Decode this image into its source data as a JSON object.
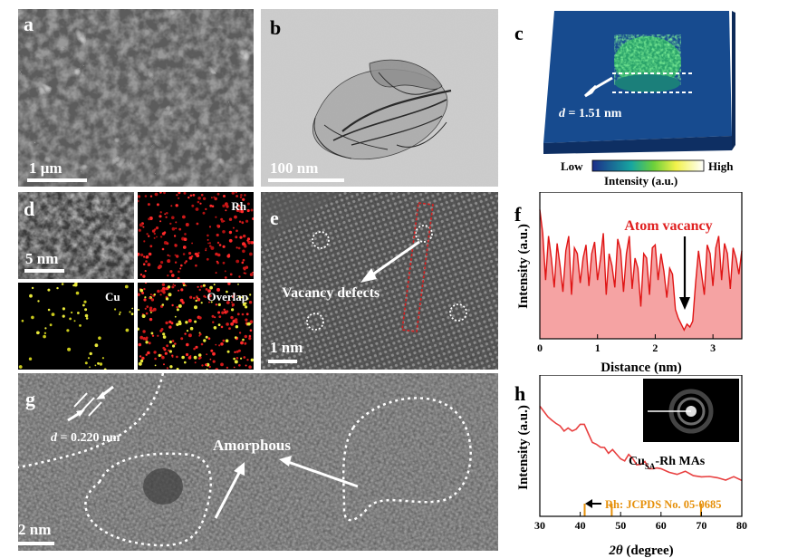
{
  "panels": {
    "a": {
      "label": "a",
      "scale": "1 μm"
    },
    "b": {
      "label": "b",
      "scale": "100 nm"
    },
    "c": {
      "label": "c",
      "d_prefix": "d",
      "d_value": " = 1.51 nm",
      "cb_low": "Low",
      "cb_high": "High",
      "cb_title": "Intensity (a.u.)"
    },
    "d": {
      "label": "d",
      "scale": "5 nm",
      "rh": "Rh",
      "cu": "Cu",
      "overlap": "Overlap"
    },
    "e": {
      "label": "e",
      "scale": "1 nm",
      "annotation": "Vacancy defects"
    },
    "f": {
      "label": "f",
      "annotation": "Atom vacancy",
      "ylabel": "Intensity (a.u.)",
      "xlabel": "Distance (nm)"
    },
    "g": {
      "label": "g",
      "scale": "2 nm",
      "d_prefix": "d",
      "d_value": " = 0.220 nm",
      "annotation": "Amorphous"
    },
    "h": {
      "label": "h",
      "ylabel": "Intensity (a.u.)",
      "series_main": "Cu",
      "series_sub": "SA",
      "series_rest": "-Rh MAs",
      "ref": "Rh: JCPDS No. 05-0685"
    }
  },
  "chart_data": [
    {
      "type": "line",
      "panel": "f",
      "xlabel": "Distance (nm)",
      "ylabel": "Intensity (a.u.)",
      "xlim": [
        0,
        3.5
      ],
      "xticks": [
        0,
        1,
        2,
        3
      ],
      "annotation": "Atom vacancy",
      "annotation_x": 2.55,
      "x": [
        0.0,
        0.05,
        0.1,
        0.15,
        0.2,
        0.25,
        0.3,
        0.35,
        0.4,
        0.45,
        0.5,
        0.55,
        0.6,
        0.65,
        0.7,
        0.75,
        0.8,
        0.85,
        0.9,
        0.95,
        1.0,
        1.05,
        1.1,
        1.15,
        1.2,
        1.25,
        1.3,
        1.35,
        1.4,
        1.45,
        1.5,
        1.55,
        1.6,
        1.65,
        1.7,
        1.75,
        1.8,
        1.85,
        1.9,
        1.95,
        2.0,
        2.05,
        2.1,
        2.15,
        2.2,
        2.25,
        2.3,
        2.35,
        2.4,
        2.45,
        2.5,
        2.55,
        2.6,
        2.65,
        2.7,
        2.75,
        2.8,
        2.85,
        2.9,
        2.95,
        3.0,
        3.05,
        3.1,
        3.15,
        3.2,
        3.25,
        3.3,
        3.35,
        3.4,
        3.45,
        3.5
      ],
      "y": [
        0.88,
        0.72,
        0.4,
        0.7,
        0.55,
        0.35,
        0.65,
        0.5,
        0.32,
        0.6,
        0.7,
        0.3,
        0.62,
        0.58,
        0.38,
        0.55,
        0.64,
        0.36,
        0.58,
        0.66,
        0.4,
        0.54,
        0.72,
        0.3,
        0.58,
        0.5,
        0.35,
        0.68,
        0.6,
        0.32,
        0.58,
        0.7,
        0.34,
        0.55,
        0.48,
        0.22,
        0.58,
        0.55,
        0.3,
        0.62,
        0.64,
        0.4,
        0.58,
        0.46,
        0.28,
        0.48,
        0.44,
        0.2,
        0.14,
        0.1,
        0.06,
        0.1,
        0.08,
        0.12,
        0.38,
        0.6,
        0.45,
        0.3,
        0.64,
        0.58,
        0.36,
        0.62,
        0.7,
        0.4,
        0.65,
        0.58,
        0.34,
        0.62,
        0.55,
        0.44,
        0.6
      ]
    },
    {
      "type": "line",
      "panel": "h",
      "xlabel": "2θ (degree)",
      "ylabel": "Intensity (a.u.)",
      "xlim": [
        30,
        80
      ],
      "xticks": [
        30,
        40,
        50,
        60,
        70,
        80
      ],
      "series": [
        {
          "name": "CuSA-Rh MAs",
          "x": [
            30,
            31,
            32,
            33,
            34,
            35,
            36,
            37,
            38,
            39,
            40,
            41,
            42,
            43,
            44,
            45,
            46,
            47,
            48,
            49,
            50,
            51,
            52,
            53,
            54,
            55,
            56,
            57,
            58,
            59,
            60,
            62,
            64,
            66,
            68,
            70,
            72,
            74,
            76,
            78,
            80
          ],
          "y": [
            0.78,
            0.74,
            0.72,
            0.69,
            0.66,
            0.64,
            0.62,
            0.61,
            0.6,
            0.62,
            0.66,
            0.64,
            0.58,
            0.54,
            0.51,
            0.5,
            0.48,
            0.46,
            0.47,
            0.44,
            0.42,
            0.41,
            0.42,
            0.39,
            0.38,
            0.37,
            0.37,
            0.35,
            0.34,
            0.34,
            0.33,
            0.32,
            0.31,
            0.3,
            0.29,
            0.29,
            0.28,
            0.28,
            0.27,
            0.27,
            0.26
          ]
        }
      ],
      "reference": {
        "name": "Rh: JCPDS No. 05-0685",
        "peaks": [
          41.1,
          47.8,
          69.9
        ]
      }
    }
  ]
}
